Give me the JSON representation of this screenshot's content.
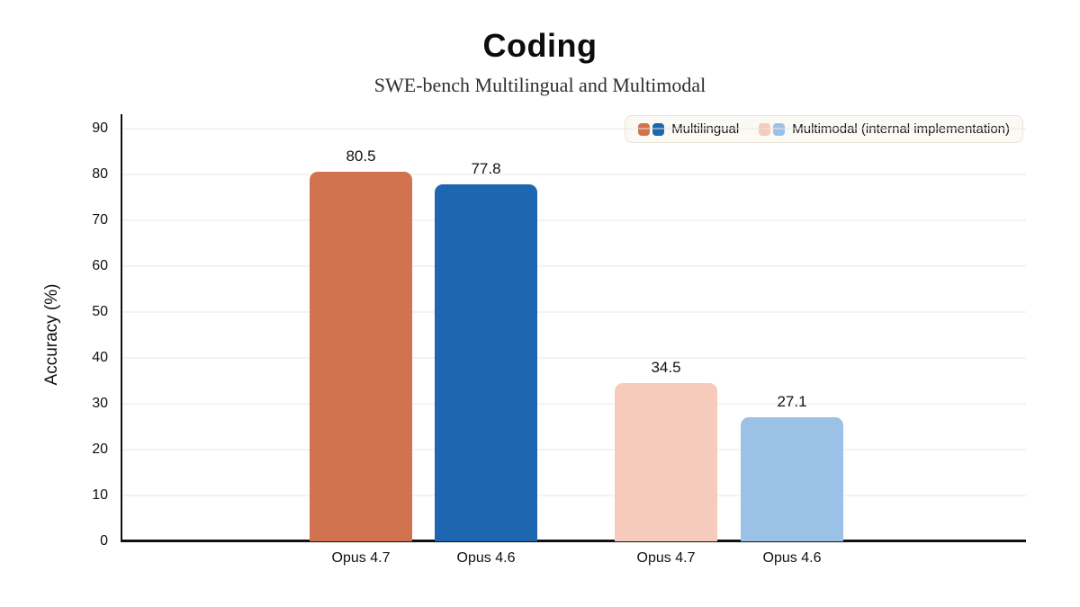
{
  "header": {
    "title": "Coding",
    "subtitle": "SWE-bench Multilingual and Multimodal"
  },
  "legend": {
    "items": [
      {
        "label": "Multilingual",
        "colors": [
          "#d1734f",
          "#1e66b0"
        ]
      },
      {
        "label": "Multimodal (internal implementation)",
        "colors": [
          "#f6cbbb",
          "#9cc1e6"
        ]
      }
    ]
  },
  "colors": {
    "background": "#ffffff",
    "axis": "#111111",
    "gridline": "#e8e7e5",
    "legend_background": "#fbf9f3",
    "legend_border": "#e9e5da",
    "text": "#111111"
  },
  "chart_data": {
    "type": "bar",
    "title": "Coding",
    "subtitle": "SWE-bench Multilingual and Multimodal",
    "xlabel": "",
    "ylabel": "Accuracy (%)",
    "ylim": [
      0,
      90
    ],
    "yticks": [
      0,
      10,
      20,
      30,
      40,
      50,
      60,
      70,
      80,
      90
    ],
    "grid": true,
    "legend_position": "top-right",
    "categories": [
      "Opus 4.7",
      "Opus 4.6",
      "Opus 4.7",
      "Opus 4.6"
    ],
    "series": [
      {
        "name": "Multilingual",
        "values": [
          80.5,
          77.8,
          null,
          null
        ]
      },
      {
        "name": "Multimodal (internal implementation)",
        "values": [
          null,
          null,
          34.5,
          27.1
        ]
      }
    ],
    "bars": [
      {
        "category": "Opus 4.7",
        "series": "Multilingual",
        "value": 80.5,
        "label": "80.5",
        "color": "#d1734f"
      },
      {
        "category": "Opus 4.6",
        "series": "Multilingual",
        "value": 77.8,
        "label": "77.8",
        "color": "#1e66b0"
      },
      {
        "category": "Opus 4.7",
        "series": "Multimodal (internal implementation)",
        "value": 34.5,
        "label": "34.5",
        "color": "#f6cbbb"
      },
      {
        "category": "Opus 4.6",
        "series": "Multimodal (internal implementation)",
        "value": 27.1,
        "label": "27.1",
        "color": "#9cc1e6"
      }
    ]
  }
}
